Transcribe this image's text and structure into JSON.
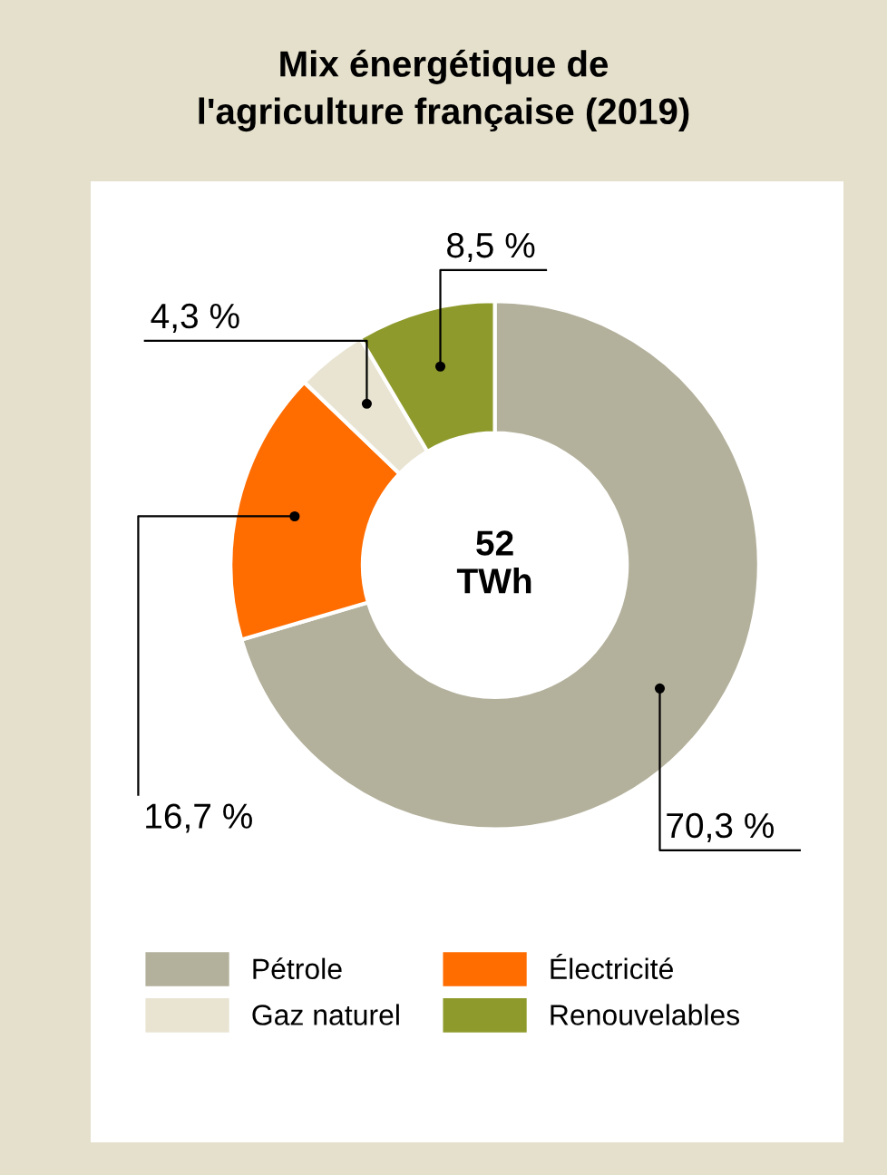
{
  "chart_data": {
    "type": "donut",
    "title": "Mix énergétique de l'agriculture française (2019)",
    "categories": [
      "Pétrole",
      "Électricité",
      "Gaz naturel",
      "Renouvelables"
    ],
    "values": [
      70.3,
      16.7,
      4.3,
      8.5
    ],
    "colors": [
      "#b3b09b",
      "#ff6c00",
      "#e9e4d2",
      "#8f9a2c"
    ],
    "value_labels": [
      "70,3 %",
      "16,7 %",
      "4,3 %",
      "8,5 %"
    ],
    "annotations": [
      "52\nTWh"
    ],
    "legend": "bottom"
  }
}
